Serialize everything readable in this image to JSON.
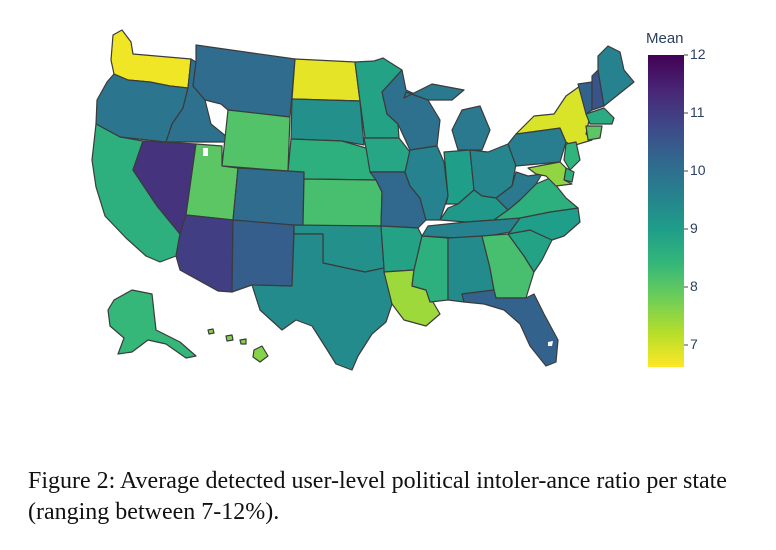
{
  "colorbar": {
    "title": "Mean",
    "ticks": [
      "12",
      "11",
      "10",
      "9",
      "8",
      "7"
    ],
    "min": 6.6,
    "max": 12,
    "colors": [
      "#fde725",
      "#b5de2b",
      "#6ece58",
      "#35b779",
      "#1f9e89",
      "#26828e",
      "#31688e",
      "#3e4989",
      "#482878",
      "#440154"
    ]
  },
  "caption": "Figure 2: Average detected user-level political intoler-ance ratio per state (ranging between 7-12%).",
  "states": [
    {
      "id": "WA",
      "value": 6.7
    },
    {
      "id": "OR",
      "value": 9.9
    },
    {
      "id": "CA",
      "value": 8.6
    },
    {
      "id": "ID",
      "value": 10.0
    },
    {
      "id": "NV",
      "value": 11.2
    },
    {
      "id": "MT",
      "value": 10.1
    },
    {
      "id": "WY",
      "value": 8.1
    },
    {
      "id": "UT",
      "value": 8.0
    },
    {
      "id": "AZ",
      "value": 11.0
    },
    {
      "id": "CO",
      "value": 10.1
    },
    {
      "id": "NM",
      "value": 10.4
    },
    {
      "id": "ND",
      "value": 6.8
    },
    {
      "id": "SD",
      "value": 9.3
    },
    {
      "id": "NE",
      "value": 8.6
    },
    {
      "id": "KS",
      "value": 8.2
    },
    {
      "id": "OK",
      "value": 9.3
    },
    {
      "id": "TX",
      "value": 9.4
    },
    {
      "id": "MN",
      "value": 8.9
    },
    {
      "id": "IA",
      "value": 8.8
    },
    {
      "id": "MO",
      "value": 10.2
    },
    {
      "id": "AR",
      "value": 8.9
    },
    {
      "id": "LA",
      "value": 7.4
    },
    {
      "id": "WI",
      "value": 10.0
    },
    {
      "id": "IL",
      "value": 9.6
    },
    {
      "id": "MI",
      "value": 9.8
    },
    {
      "id": "IN",
      "value": 9.0
    },
    {
      "id": "OH",
      "value": 9.5
    },
    {
      "id": "KY",
      "value": 9.1
    },
    {
      "id": "TN",
      "value": 9.6
    },
    {
      "id": "MS",
      "value": 8.6
    },
    {
      "id": "AL",
      "value": 9.4
    },
    {
      "id": "GA",
      "value": 8.2
    },
    {
      "id": "FL",
      "value": 10.3
    },
    {
      "id": "SC",
      "value": 8.9
    },
    {
      "id": "NC",
      "value": 9.0
    },
    {
      "id": "VA",
      "value": 8.6
    },
    {
      "id": "WV",
      "value": 9.8
    },
    {
      "id": "PA",
      "value": 9.7
    },
    {
      "id": "NY",
      "value": 6.9
    },
    {
      "id": "VT",
      "value": 10.3
    },
    {
      "id": "NH",
      "value": 10.6
    },
    {
      "id": "ME",
      "value": 9.6
    },
    {
      "id": "MA",
      "value": 8.7
    },
    {
      "id": "CT",
      "value": 8.0
    },
    {
      "id": "NJ",
      "value": 8.5
    },
    {
      "id": "DE",
      "value": 8.6
    },
    {
      "id": "MD",
      "value": 7.5
    },
    {
      "id": "AK",
      "value": 8.4
    },
    {
      "id": "HI",
      "value": 7.6
    }
  ]
}
